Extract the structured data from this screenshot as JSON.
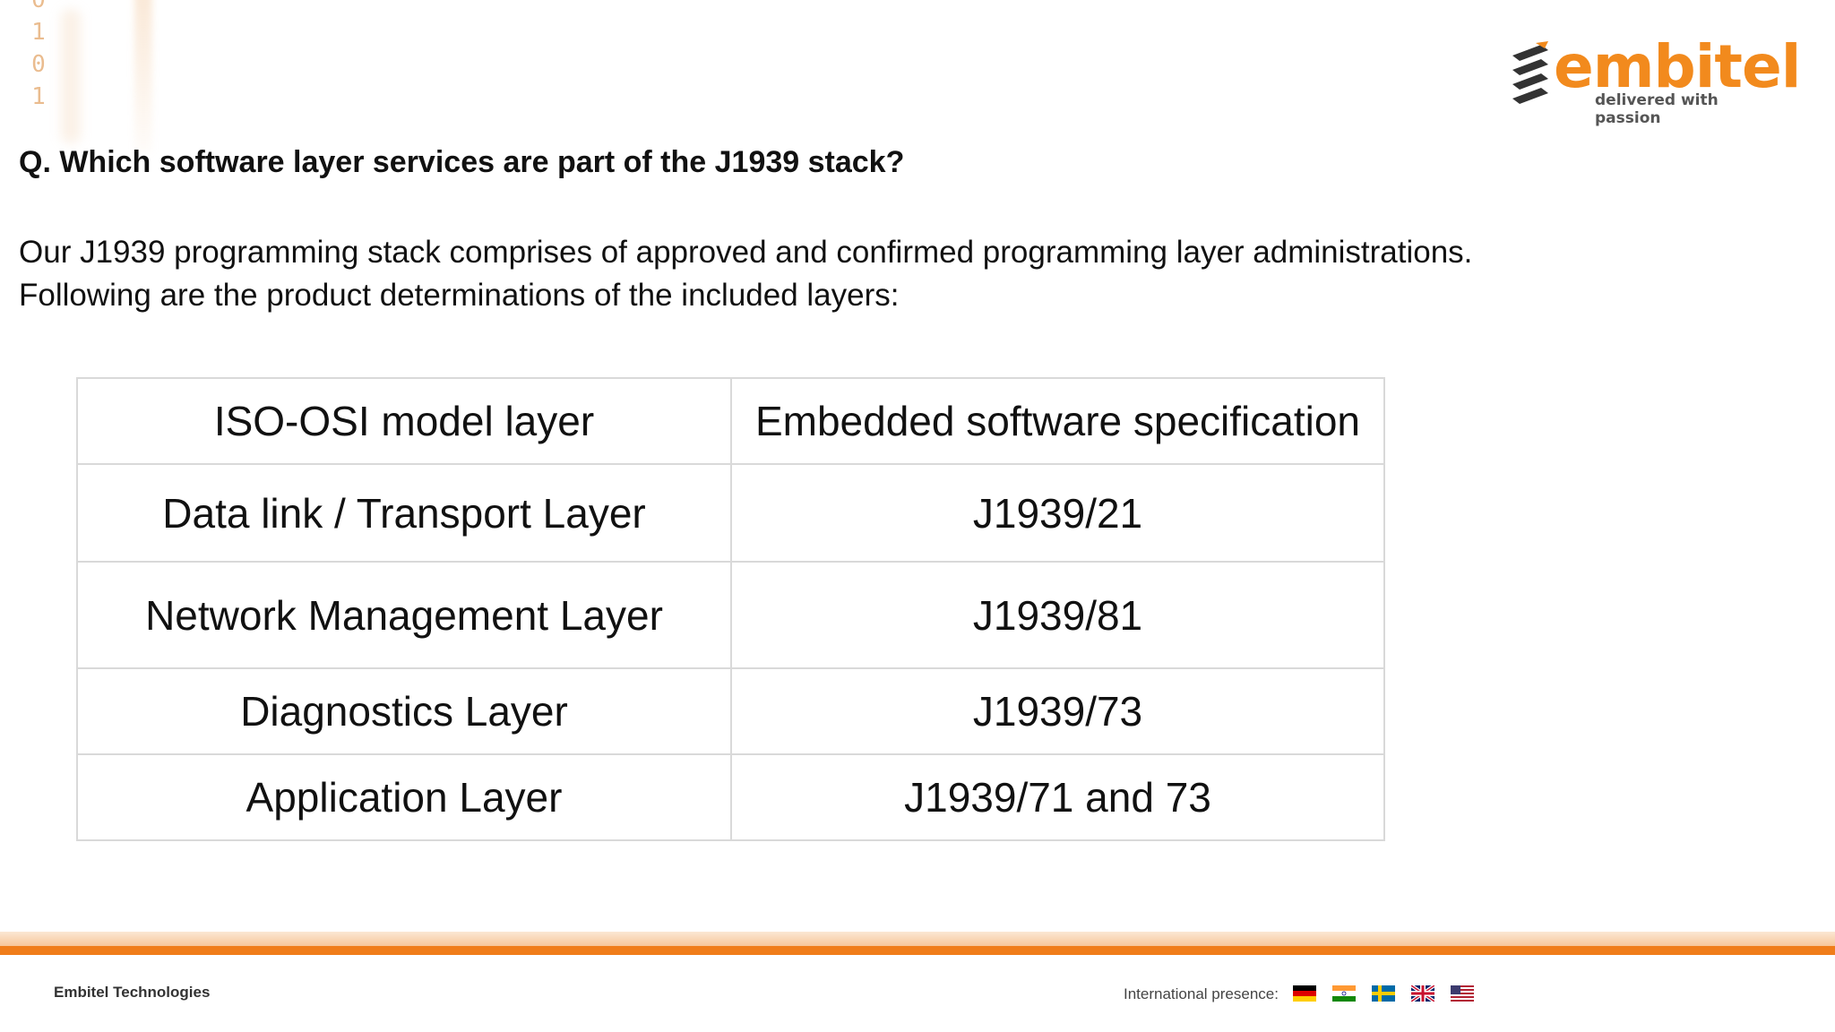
{
  "decoration": {
    "binary_digits": [
      "0",
      "1",
      "0",
      "1"
    ]
  },
  "logo": {
    "name": "embitel",
    "tagline": "delivered with passion",
    "color": "#f28a1d"
  },
  "question": "Q. Which software layer services are part of the J1939 stack?",
  "intro": [
    "Our J1939 programming stack comprises of approved and confirmed programming layer administrations.",
    "Following are the product determinations of the included layers:"
  ],
  "table": {
    "headers": [
      "ISO-OSI model layer",
      "Embedded software specification"
    ],
    "rows": [
      [
        "Data link / Transport Layer",
        "J1939/21"
      ],
      [
        "Network Management Layer",
        "J1939/81"
      ],
      [
        "Diagnostics Layer",
        "J1939/73"
      ],
      [
        "Application Layer",
        "J1939/71 and 73"
      ]
    ]
  },
  "footer": {
    "company": "Embitel Technologies",
    "presence_label": "International presence:",
    "flags": [
      "germany-flag-icon",
      "india-flag-icon",
      "sweden-flag-icon",
      "uk-flag-icon",
      "usa-flag-icon"
    ],
    "accent": "#f07d1a"
  }
}
